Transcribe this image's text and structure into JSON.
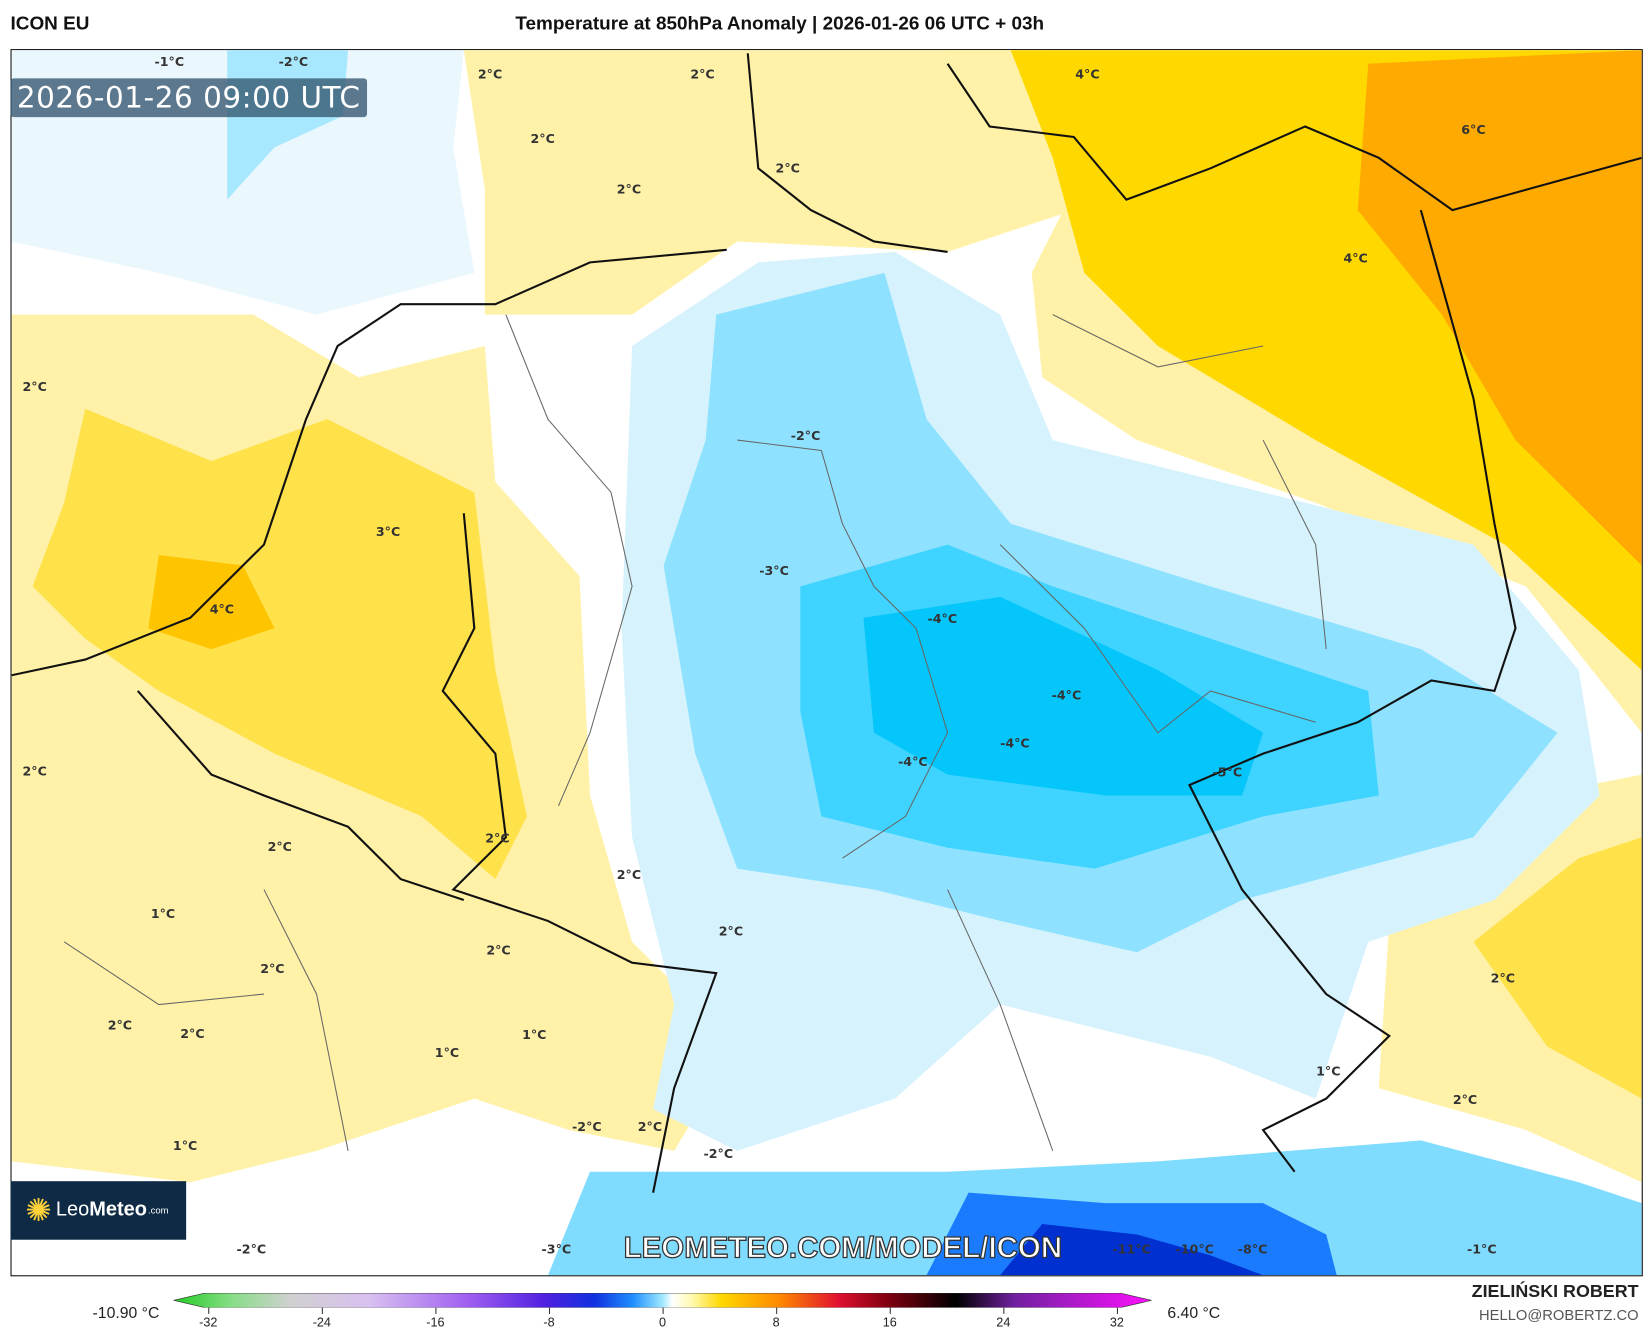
{
  "header": {
    "model": "ICON EU",
    "title": "Temperature at 850hPa Anomaly | 2026-01-26 06 UTC + 03h"
  },
  "map": {
    "valid_time": "2026-01-26 09:00 UTC",
    "watermark": "LEOMETEO.COM/MODEL/ICON",
    "contour_labels": [
      "-1°C",
      "-2°C",
      "2°C",
      "2°C",
      "4°C",
      "6°C",
      "2°C",
      "2°C",
      "2°C",
      "4°C",
      "2°C",
      "-2°C",
      "3°C",
      "-3°C",
      "4°C",
      "-4°C",
      "-4°C",
      "-4°C",
      "-4°C",
      "-5°C",
      "2°C",
      "2°C",
      "2°C",
      "2°C",
      "1°C",
      "2°C",
      "2°C",
      "2°C",
      "2°C",
      "2°C",
      "2°C",
      "1°C",
      "1°C",
      "1°C",
      "2°C",
      "-2°C",
      "2°C",
      "-2°C",
      "1°C",
      "-2°C",
      "-3°C",
      "-11°C",
      "-10°C",
      "-8°C",
      "-1°C"
    ],
    "colors": {
      "warm": "#ffd800",
      "warm_light": "#fff2a8",
      "cold": "#7fdcff",
      "cold_strong": "#00c8ff",
      "cold_deep": "#0030d0"
    }
  },
  "logo": {
    "brand_light": "Leo",
    "brand_bold": "Meteo",
    "suffix": ".com"
  },
  "colorbar": {
    "min_label": "-10.90 °C",
    "max_label": "6.40 °C",
    "ticks": [
      "-32",
      "-24",
      "-16",
      "-8",
      "0",
      "8",
      "16",
      "24",
      "32"
    ],
    "range": [
      -32,
      32
    ]
  },
  "credits": {
    "author": "ZIELIŃSKI ROBERT",
    "email": "HELLO@ROBERTZ.CO"
  }
}
